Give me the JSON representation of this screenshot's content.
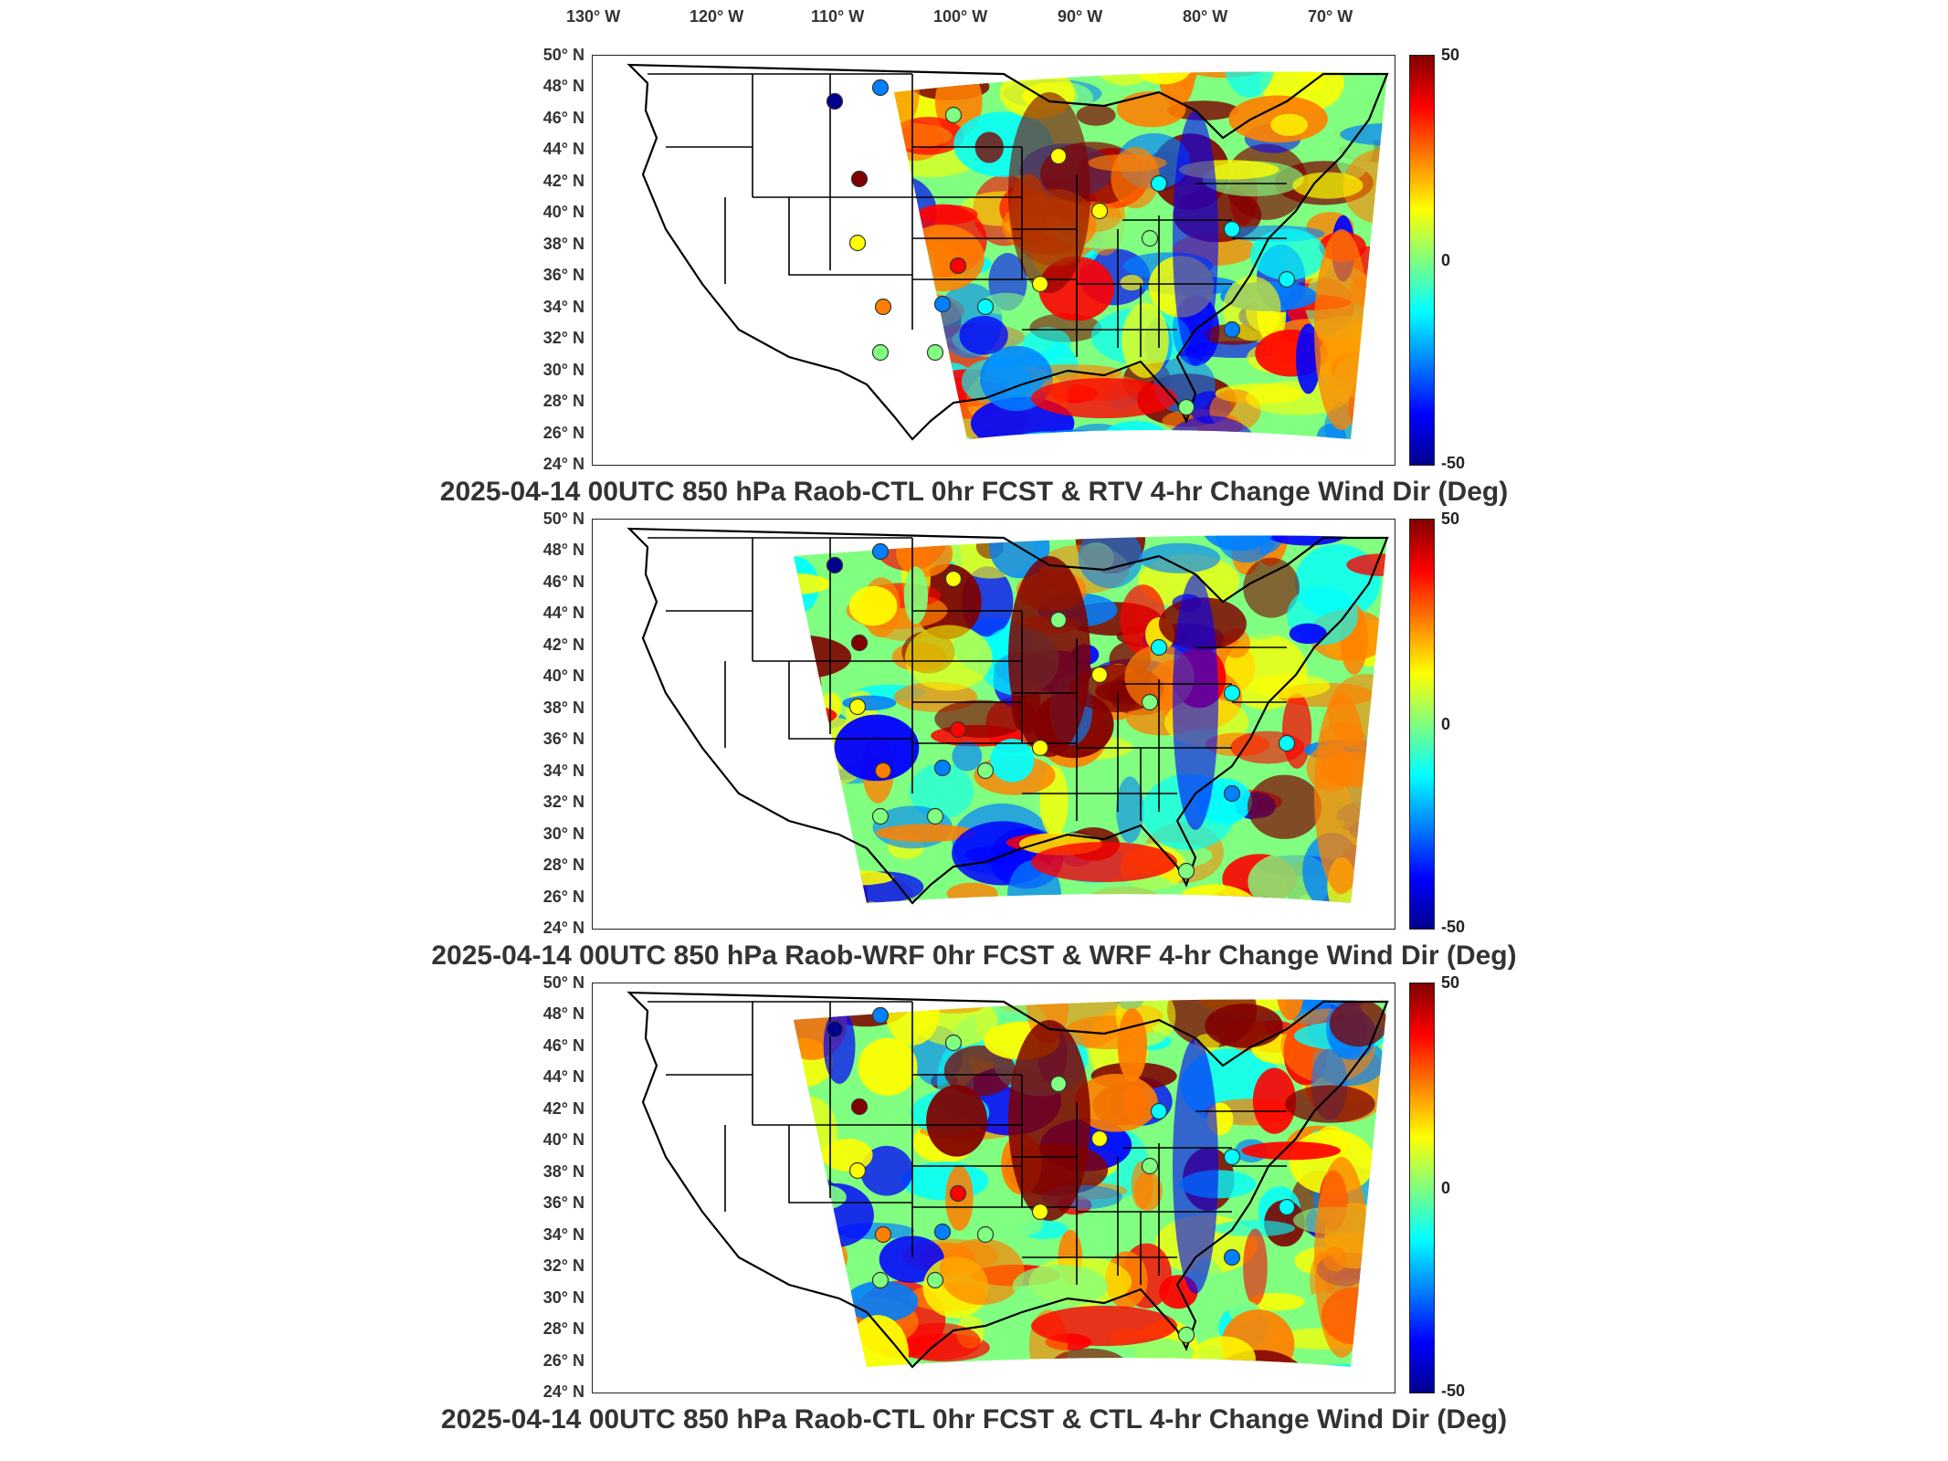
{
  "longitude_labels": [
    "130° W",
    "120° W",
    "110° W",
    "100° W",
    "90° W",
    "80° W",
    "70° W"
  ],
  "latitude_labels": [
    "50° N",
    "48° N",
    "46° N",
    "44° N",
    "42° N",
    "40° N",
    "38° N",
    "36° N",
    "34° N",
    "32° N",
    "30° N",
    "28° N",
    "26° N",
    "24° N"
  ],
  "colorbar": {
    "max_label": "50",
    "mid_label": "0",
    "min_label": "-50"
  },
  "colors": {
    "colormap": [
      "#00008f",
      "#0000ff",
      "#0080ff",
      "#00ffff",
      "#80ff80",
      "#ffff00",
      "#ff8000",
      "#ff0000",
      "#800000"
    ]
  },
  "panels": [
    {
      "title": "2025-04-14 00UTC 850 hPa Raob-CTL 0hr FCST & RTV 4-hr Change Wind Dir (Deg)"
    },
    {
      "title": "2025-04-14 00UTC 850 hPa Raob-WRF 0hr FCST & WRF 4-hr Change Wind Dir (Deg)"
    },
    {
      "title": "2025-04-14 00UTC 850 hPa Raob-CTL 0hr FCST & CTL 4-hr Change Wind Dir (Deg)"
    }
  ]
}
